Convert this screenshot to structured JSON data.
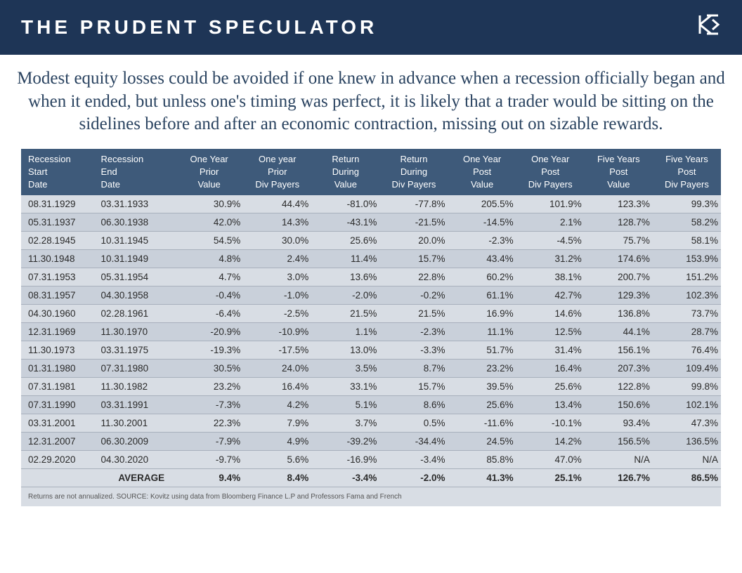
{
  "header": {
    "title": "THE PRUDENT SPECULATOR",
    "logo_color": "#ffffff",
    "background_color": "#1e3556"
  },
  "subtitle": "Modest equity losses could be avoided if one knew in advance when a recession officially began and when it ended, but unless one's timing was perfect, it is likely that a trader would be sitting on the sidelines before and after an economic contraction, missing out on sizable rewards.",
  "table": {
    "type": "table",
    "header_background": "#3e5a7a",
    "header_text_color": "#ffffff",
    "row_odd_background": "#d8dde4",
    "row_even_background": "#c9d0da",
    "border_color": "#a8b0bc",
    "font_size": 13.5,
    "header_font_size": 13,
    "columns": [
      {
        "line1": "Recession",
        "line2": "Start",
        "line3": "Date"
      },
      {
        "line1": "Recession",
        "line2": "End",
        "line3": "Date"
      },
      {
        "line1": "One Year",
        "line2": "Prior",
        "line3": "Value"
      },
      {
        "line1": "One year",
        "line2": "Prior",
        "line3": "Div Payers"
      },
      {
        "line1": "Return",
        "line2": "During",
        "line3": "Value"
      },
      {
        "line1": "Return",
        "line2": "During",
        "line3": "Div Payers"
      },
      {
        "line1": "One Year",
        "line2": "Post",
        "line3": "Value"
      },
      {
        "line1": "One Year",
        "line2": "Post",
        "line3": "Div Payers"
      },
      {
        "line1": "Five Years",
        "line2": "Post",
        "line3": "Value"
      },
      {
        "line1": "Five Years",
        "line2": "Post",
        "line3": "Div Payers"
      }
    ],
    "rows": [
      [
        "08.31.1929",
        "03.31.1933",
        "30.9%",
        "44.4%",
        "-81.0%",
        "-77.8%",
        "205.5%",
        "101.9%",
        "123.3%",
        "99.3%"
      ],
      [
        "05.31.1937",
        "06.30.1938",
        "42.0%",
        "14.3%",
        "-43.1%",
        "-21.5%",
        "-14.5%",
        "2.1%",
        "128.7%",
        "58.2%"
      ],
      [
        "02.28.1945",
        "10.31.1945",
        "54.5%",
        "30.0%",
        "25.6%",
        "20.0%",
        "-2.3%",
        "-4.5%",
        "75.7%",
        "58.1%"
      ],
      [
        "11.30.1948",
        "10.31.1949",
        "4.8%",
        "2.4%",
        "11.4%",
        "15.7%",
        "43.4%",
        "31.2%",
        "174.6%",
        "153.9%"
      ],
      [
        "07.31.1953",
        "05.31.1954",
        "4.7%",
        "3.0%",
        "13.6%",
        "22.8%",
        "60.2%",
        "38.1%",
        "200.7%",
        "151.2%"
      ],
      [
        "08.31.1957",
        "04.30.1958",
        "-0.4%",
        "-1.0%",
        "-2.0%",
        "-0.2%",
        "61.1%",
        "42.7%",
        "129.3%",
        "102.3%"
      ],
      [
        "04.30.1960",
        "02.28.1961",
        "-6.4%",
        "-2.5%",
        "21.5%",
        "21.5%",
        "16.9%",
        "14.6%",
        "136.8%",
        "73.7%"
      ],
      [
        "12.31.1969",
        "11.30.1970",
        "-20.9%",
        "-10.9%",
        "1.1%",
        "-2.3%",
        "11.1%",
        "12.5%",
        "44.1%",
        "28.7%"
      ],
      [
        "11.30.1973",
        "03.31.1975",
        "-19.3%",
        "-17.5%",
        "13.0%",
        "-3.3%",
        "51.7%",
        "31.4%",
        "156.1%",
        "76.4%"
      ],
      [
        "01.31.1980",
        "07.31.1980",
        "30.5%",
        "24.0%",
        "3.5%",
        "8.7%",
        "23.2%",
        "16.4%",
        "207.3%",
        "109.4%"
      ],
      [
        "07.31.1981",
        "11.30.1982",
        "23.2%",
        "16.4%",
        "33.1%",
        "15.7%",
        "39.5%",
        "25.6%",
        "122.8%",
        "99.8%"
      ],
      [
        "07.31.1990",
        "03.31.1991",
        "-7.3%",
        "4.2%",
        "5.1%",
        "8.6%",
        "25.6%",
        "13.4%",
        "150.6%",
        "102.1%"
      ],
      [
        "03.31.2001",
        "11.30.2001",
        "22.3%",
        "7.9%",
        "3.7%",
        "0.5%",
        "-11.6%",
        "-10.1%",
        "93.4%",
        "47.3%"
      ],
      [
        "12.31.2007",
        "06.30.2009",
        "-7.9%",
        "4.9%",
        "-39.2%",
        "-34.4%",
        "24.5%",
        "14.2%",
        "156.5%",
        "136.5%"
      ],
      [
        "02.29.2020",
        "04.30.2020",
        "-9.7%",
        "5.6%",
        "-16.9%",
        "-3.4%",
        "85.8%",
        "47.0%",
        "N/A",
        "N/A"
      ]
    ],
    "average": [
      "",
      "AVERAGE",
      "9.4%",
      "8.4%",
      "-3.4%",
      "-2.0%",
      "41.3%",
      "25.1%",
      "126.7%",
      "86.5%"
    ]
  },
  "footnote": "Returns are not annualized. SOURCE: Kovitz using data from Bloomberg Finance L.P and Professors Fama and French"
}
